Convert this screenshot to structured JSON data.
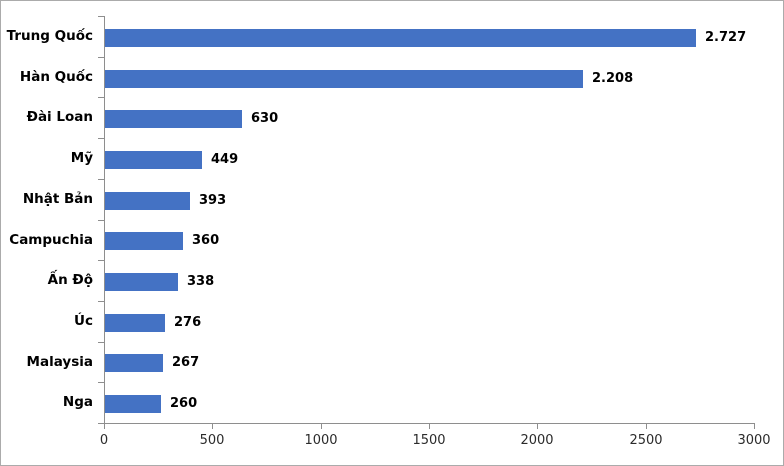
{
  "chart_data": {
    "type": "bar",
    "orientation": "horizontal",
    "title": "",
    "xlabel": "",
    "ylabel": "",
    "categories": [
      "Trung Quốc",
      "Hàn Quốc",
      "Đài Loan",
      "Mỹ",
      "Nhật Bản",
      "Campuchia",
      "Ấn Độ",
      "Úc",
      "Malaysia",
      "Nga"
    ],
    "values": [
      2727,
      2208,
      630,
      449,
      393,
      360,
      338,
      276,
      267,
      260
    ],
    "value_labels": [
      "2.727",
      "2.208",
      "630",
      "449",
      "393",
      "360",
      "338",
      "276",
      "267",
      "260"
    ],
    "xlim": [
      0,
      3000
    ],
    "x_ticks": [
      0,
      500,
      1000,
      1500,
      2000,
      2500,
      3000
    ],
    "x_tick_labels": [
      "0",
      "500",
      "1000",
      "1500",
      "2000",
      "2500",
      "3000"
    ],
    "grid": false,
    "legend": false,
    "colors": {
      "bar": "#4472C4",
      "axis": "#8e8e8e",
      "label": "#000000",
      "tick_label": "#2b2b2b",
      "border": "#ababab",
      "background": "#ffffff"
    }
  }
}
